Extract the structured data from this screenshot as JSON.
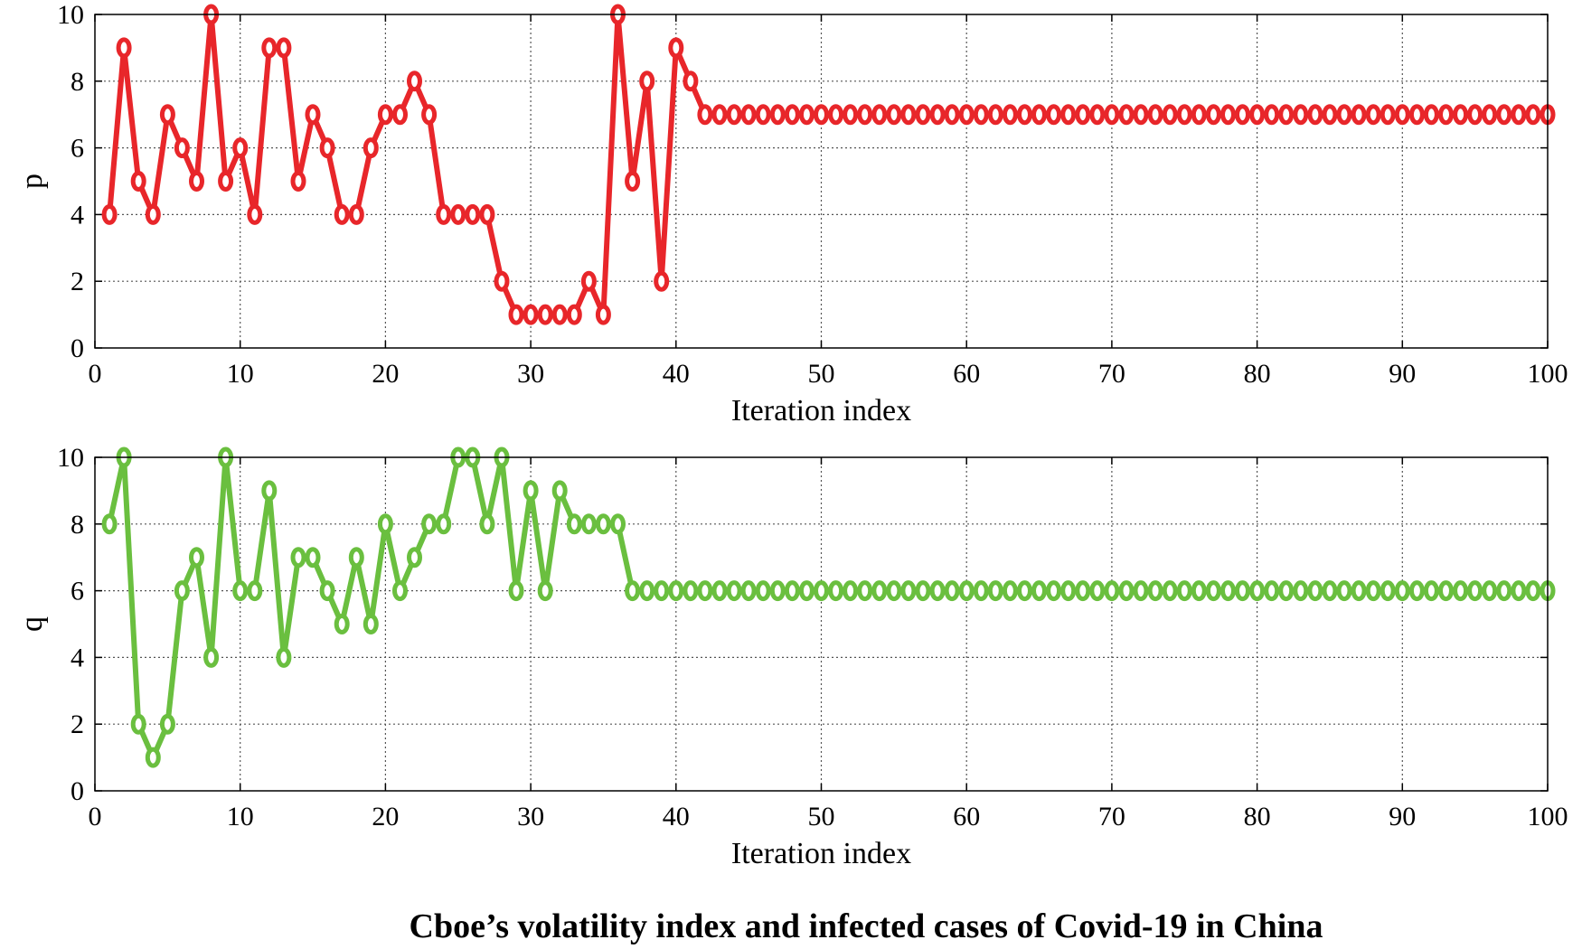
{
  "caption": "Cboe’s volatility index and infected cases of Covid-19 in China",
  "chart_data": [
    {
      "type": "line",
      "title": "",
      "xlabel": "Iteration index",
      "ylabel": "p",
      "xlim": [
        0,
        100
      ],
      "ylim": [
        0,
        10
      ],
      "xticks": [
        0,
        10,
        20,
        30,
        40,
        50,
        60,
        70,
        80,
        90,
        100
      ],
      "yticks": [
        0,
        2,
        4,
        6,
        8,
        10
      ],
      "grid": true,
      "color": "#e8262a",
      "x": [
        1,
        2,
        3,
        4,
        5,
        6,
        7,
        8,
        9,
        10,
        11,
        12,
        13,
        14,
        15,
        16,
        17,
        18,
        19,
        20,
        21,
        22,
        23,
        24,
        25,
        26,
        27,
        28,
        29,
        30,
        31,
        32,
        33,
        34,
        35,
        36,
        37,
        38,
        39,
        40,
        41,
        42,
        43,
        44,
        45,
        46,
        47,
        48,
        49,
        50,
        51,
        52,
        53,
        54,
        55,
        56,
        57,
        58,
        59,
        60,
        61,
        62,
        63,
        64,
        65,
        66,
        67,
        68,
        69,
        70,
        71,
        72,
        73,
        74,
        75,
        76,
        77,
        78,
        79,
        80,
        81,
        82,
        83,
        84,
        85,
        86,
        87,
        88,
        89,
        90,
        91,
        92,
        93,
        94,
        95,
        96,
        97,
        98,
        99,
        100
      ],
      "values": [
        4,
        9,
        5,
        4,
        7,
        6,
        5,
        10,
        5,
        6,
        4,
        9,
        9,
        5,
        7,
        6,
        4,
        4,
        6,
        7,
        7,
        8,
        7,
        4,
        4,
        4,
        4,
        2,
        1,
        1,
        1,
        1,
        1,
        2,
        1,
        10,
        5,
        8,
        2,
        9,
        8,
        7,
        7,
        7,
        7,
        7,
        7,
        7,
        7,
        7,
        7,
        7,
        7,
        7,
        7,
        7,
        7,
        7,
        7,
        7,
        7,
        7,
        7,
        7,
        7,
        7,
        7,
        7,
        7,
        7,
        7,
        7,
        7,
        7,
        7,
        7,
        7,
        7,
        7,
        7,
        7,
        7,
        7,
        7,
        7,
        7,
        7,
        7,
        7,
        7,
        7,
        7,
        7,
        7,
        7,
        7,
        7,
        7,
        7,
        7
      ]
    },
    {
      "type": "line",
      "title": "",
      "xlabel": "Iteration index",
      "ylabel": "q",
      "xlim": [
        0,
        100
      ],
      "ylim": [
        0,
        10
      ],
      "xticks": [
        0,
        10,
        20,
        30,
        40,
        50,
        60,
        70,
        80,
        90,
        100
      ],
      "yticks": [
        0,
        2,
        4,
        6,
        8,
        10
      ],
      "grid": true,
      "color": "#6abf3f",
      "x": [
        1,
        2,
        3,
        4,
        5,
        6,
        7,
        8,
        9,
        10,
        11,
        12,
        13,
        14,
        15,
        16,
        17,
        18,
        19,
        20,
        21,
        22,
        23,
        24,
        25,
        26,
        27,
        28,
        29,
        30,
        31,
        32,
        33,
        34,
        35,
        36,
        37,
        38,
        39,
        40,
        41,
        42,
        43,
        44,
        45,
        46,
        47,
        48,
        49,
        50,
        51,
        52,
        53,
        54,
        55,
        56,
        57,
        58,
        59,
        60,
        61,
        62,
        63,
        64,
        65,
        66,
        67,
        68,
        69,
        70,
        71,
        72,
        73,
        74,
        75,
        76,
        77,
        78,
        79,
        80,
        81,
        82,
        83,
        84,
        85,
        86,
        87,
        88,
        89,
        90,
        91,
        92,
        93,
        94,
        95,
        96,
        97,
        98,
        99,
        100
      ],
      "values": [
        8,
        10,
        2,
        1,
        2,
        6,
        7,
        4,
        10,
        6,
        6,
        9,
        4,
        7,
        7,
        6,
        5,
        7,
        5,
        8,
        6,
        7,
        8,
        8,
        10,
        10,
        8,
        10,
        6,
        9,
        6,
        9,
        8,
        8,
        8,
        8,
        6,
        6,
        6,
        6,
        6,
        6,
        6,
        6,
        6,
        6,
        6,
        6,
        6,
        6,
        6,
        6,
        6,
        6,
        6,
        6,
        6,
        6,
        6,
        6,
        6,
        6,
        6,
        6,
        6,
        6,
        6,
        6,
        6,
        6,
        6,
        6,
        6,
        6,
        6,
        6,
        6,
        6,
        6,
        6,
        6,
        6,
        6,
        6,
        6,
        6,
        6,
        6,
        6,
        6,
        6,
        6,
        6,
        6,
        6,
        6,
        6,
        6,
        6,
        6
      ]
    }
  ]
}
